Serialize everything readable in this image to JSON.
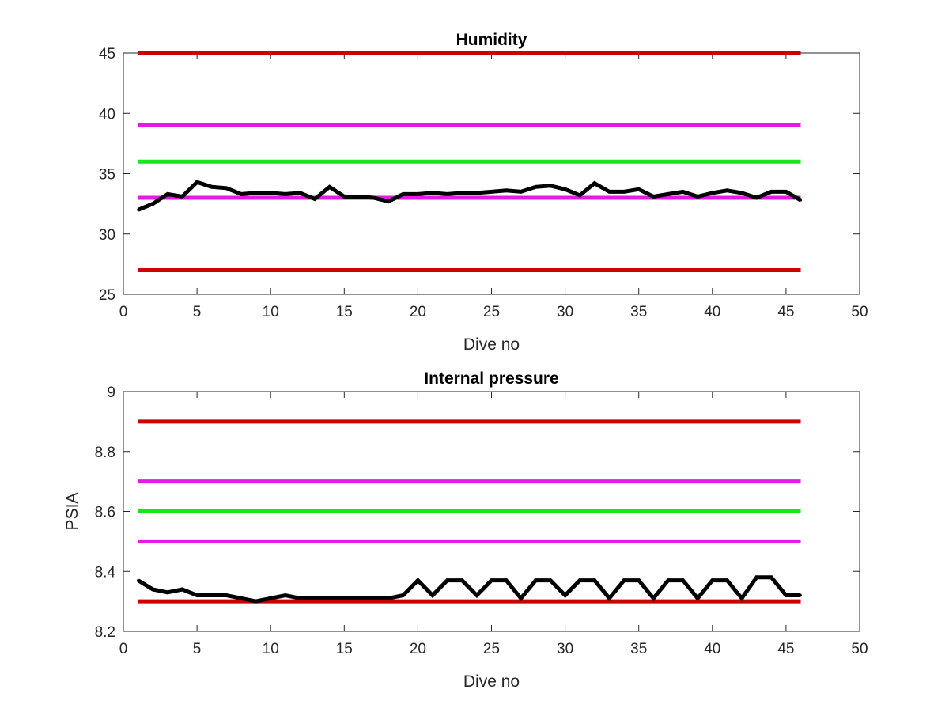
{
  "chart_data": [
    {
      "type": "line",
      "title": "Humidity",
      "xlabel": "Dive no",
      "ylabel": "",
      "xlim": [
        0,
        50
      ],
      "ylim": [
        25,
        45
      ],
      "xticks": [
        0,
        5,
        10,
        15,
        20,
        25,
        30,
        35,
        40,
        45,
        50
      ],
      "yticks": [
        25,
        30,
        35,
        40,
        45
      ],
      "grid": false,
      "reference_lines": [
        {
          "y": 45,
          "x": [
            1,
            46
          ],
          "color": "#cc0000"
        },
        {
          "y": 39,
          "x": [
            1,
            46
          ],
          "color": "#e619e6"
        },
        {
          "y": 36,
          "x": [
            1,
            46
          ],
          "color": "#19e619"
        },
        {
          "y": 33,
          "x": [
            1,
            46
          ],
          "color": "#e619e6"
        },
        {
          "y": 27,
          "x": [
            1,
            46
          ],
          "color": "#cc0000"
        }
      ],
      "series": [
        {
          "color": "#000000",
          "x": [
            1,
            2,
            3,
            4,
            5,
            6,
            7,
            8,
            9,
            10,
            11,
            12,
            13,
            14,
            15,
            16,
            17,
            18,
            19,
            20,
            21,
            22,
            23,
            24,
            25,
            26,
            27,
            28,
            29,
            30,
            31,
            32,
            33,
            34,
            35,
            36,
            37,
            38,
            39,
            40,
            41,
            42,
            43,
            44,
            45,
            46
          ],
          "values": [
            32.0,
            32.5,
            33.3,
            33.1,
            34.3,
            33.9,
            33.8,
            33.3,
            33.4,
            33.4,
            33.3,
            33.4,
            32.9,
            33.9,
            33.1,
            33.1,
            33.0,
            32.7,
            33.3,
            33.3,
            33.4,
            33.3,
            33.4,
            33.4,
            33.5,
            33.6,
            33.5,
            33.9,
            34.0,
            33.7,
            33.2,
            34.2,
            33.5,
            33.5,
            33.7,
            33.1,
            33.3,
            33.5,
            33.1,
            33.4,
            33.6,
            33.4,
            33.0,
            33.5,
            33.5,
            32.8
          ]
        }
      ]
    },
    {
      "type": "line",
      "title": "Internal pressure",
      "xlabel": "Dive no",
      "ylabel": "PSIA",
      "xlim": [
        0,
        50
      ],
      "ylim": [
        8.2,
        9
      ],
      "xticks": [
        0,
        5,
        10,
        15,
        20,
        25,
        30,
        35,
        40,
        45,
        50
      ],
      "yticks": [
        8.2,
        8.4,
        8.6,
        8.8,
        9
      ],
      "grid": false,
      "reference_lines": [
        {
          "y": 8.9,
          "x": [
            1,
            46
          ],
          "color": "#cc0000"
        },
        {
          "y": 8.7,
          "x": [
            1,
            46
          ],
          "color": "#e619e6"
        },
        {
          "y": 8.6,
          "x": [
            1,
            46
          ],
          "color": "#19e619"
        },
        {
          "y": 8.5,
          "x": [
            1,
            46
          ],
          "color": "#e619e6"
        },
        {
          "y": 8.3,
          "x": [
            1,
            46
          ],
          "color": "#cc0000"
        }
      ],
      "series": [
        {
          "color": "#000000",
          "x": [
            1,
            2,
            3,
            4,
            5,
            6,
            7,
            8,
            9,
            10,
            11,
            12,
            13,
            14,
            15,
            16,
            17,
            18,
            19,
            20,
            21,
            22,
            23,
            24,
            25,
            26,
            27,
            28,
            29,
            30,
            31,
            32,
            33,
            34,
            35,
            36,
            37,
            38,
            39,
            40,
            41,
            42,
            43,
            44,
            45,
            46
          ],
          "values": [
            8.37,
            8.34,
            8.33,
            8.34,
            8.32,
            8.32,
            8.32,
            8.31,
            8.3,
            8.31,
            8.32,
            8.31,
            8.31,
            8.31,
            8.31,
            8.31,
            8.31,
            8.31,
            8.32,
            8.37,
            8.32,
            8.37,
            8.37,
            8.32,
            8.37,
            8.37,
            8.31,
            8.37,
            8.37,
            8.32,
            8.37,
            8.37,
            8.31,
            8.37,
            8.37,
            8.31,
            8.37,
            8.37,
            8.31,
            8.37,
            8.37,
            8.31,
            8.38,
            8.38,
            8.32,
            8.32
          ]
        }
      ]
    }
  ]
}
